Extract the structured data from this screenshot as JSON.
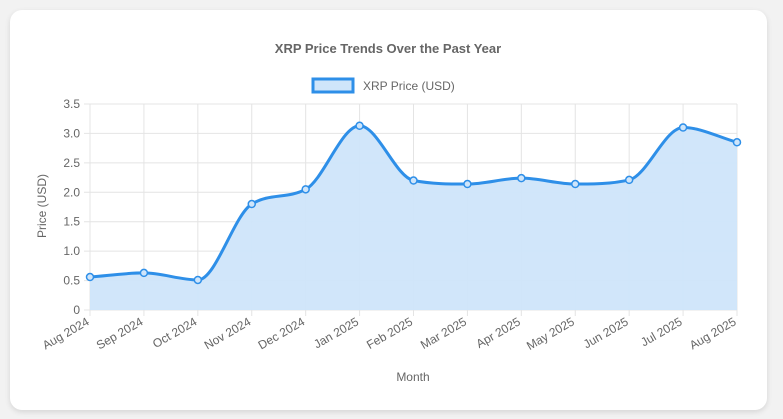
{
  "chart_data": {
    "type": "line",
    "title": "XRP Price Trends Over the Past Year",
    "xlabel": "Month",
    "ylabel": "Price (USD)",
    "categories": [
      "Aug 2024",
      "Sep 2024",
      "Oct 2024",
      "Nov 2024",
      "Dec 2024",
      "Jan 2025",
      "Feb 2025",
      "Mar 2025",
      "Apr 2025",
      "May 2025",
      "Jun 2025",
      "Jul 2025",
      "Aug 2025"
    ],
    "series": [
      {
        "name": "XRP Price (USD)",
        "values": [
          0.56,
          0.63,
          0.51,
          1.8,
          2.05,
          3.13,
          2.2,
          2.14,
          2.24,
          2.14,
          2.21,
          3.1,
          2.85
        ],
        "color": "#2e8fe8",
        "fill": "#cfe5fa"
      }
    ],
    "ylim": [
      0,
      3.5
    ],
    "yticks": [
      "0",
      "0.5",
      "1.0",
      "1.5",
      "2.0",
      "2.5",
      "3.0",
      "3.5"
    ],
    "grid": true,
    "legend": "top-center"
  }
}
